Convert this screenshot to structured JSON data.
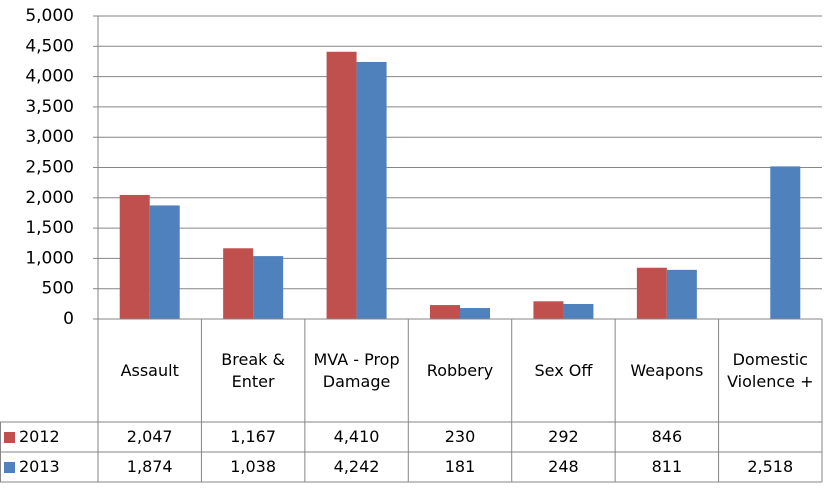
{
  "chart_data": {
    "type": "bar",
    "categories": [
      "Assault",
      "Break & Enter",
      "MVA - Prop Damage",
      "Robbery",
      "Sex Off",
      "Weapons",
      "Domestic Violence +"
    ],
    "series": [
      {
        "name": "2012",
        "color": "#c0504d",
        "values": [
          2047,
          1167,
          4410,
          230,
          292,
          846,
          null
        ],
        "value_labels": [
          "2,047",
          "1,167",
          "4,410",
          "230",
          "292",
          "846",
          null
        ]
      },
      {
        "name": "2013",
        "color": "#4f81bd",
        "values": [
          1874,
          1038,
          4242,
          181,
          248,
          811,
          2518
        ],
        "value_labels": [
          "1,874",
          "1,038",
          "4,242",
          "181",
          "248",
          "811",
          "2,518"
        ]
      }
    ],
    "ylim": [
      0,
      5000
    ],
    "yticks": [
      0,
      500,
      {
        "value": 1000,
        "label": "1,000"
      },
      {
        "value": 1500,
        "label": "1,500"
      },
      {
        "value": 2000,
        "label": "2,000"
      },
      {
        "value": 2500,
        "label": "2,500"
      },
      {
        "value": 3000,
        "label": "3,000"
      },
      {
        "value": 3500,
        "label": "3,500"
      },
      {
        "value": 4000,
        "label": "4,000"
      },
      {
        "value": 4500,
        "label": "4,500"
      },
      {
        "value": 5000,
        "label": "5,000"
      }
    ],
    "grid": true
  }
}
